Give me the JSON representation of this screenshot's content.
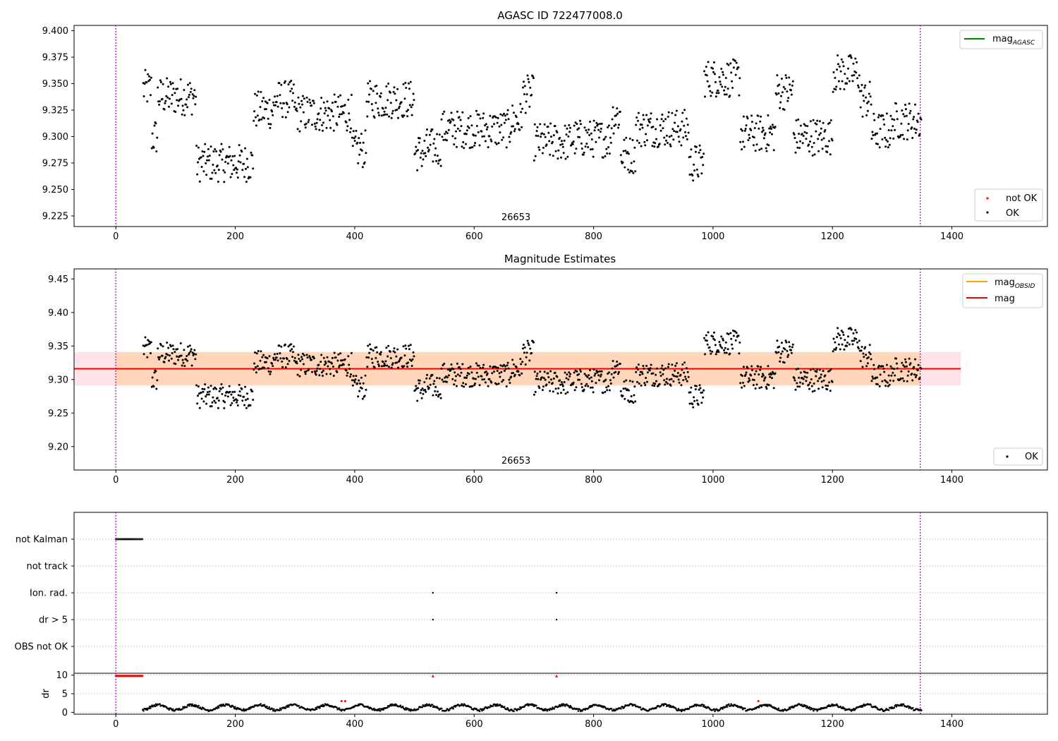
{
  "chart_data": [
    {
      "type": "scatter",
      "title": "AGASC ID 722477008.0",
      "xlim": [
        -70,
        1560
      ],
      "ylim": [
        9.215,
        9.405
      ],
      "xticks": [
        "0",
        "200",
        "400",
        "600",
        "800",
        "1000",
        "1200",
        "1400"
      ],
      "yticks": [
        "9.225",
        "9.250",
        "9.275",
        "9.300",
        "9.325",
        "9.350",
        "9.375",
        "9.400"
      ],
      "obsid_label": "26653",
      "obsid_label_x": 670,
      "vlines_x": [
        0,
        1347
      ],
      "legend_top": [
        {
          "label": "mag",
          "sub": "AGASC",
          "color": "#008000"
        }
      ],
      "legend_bottom": [
        {
          "label": "not OK",
          "color": "#ff0000"
        },
        {
          "label": "OK",
          "color": "#000000"
        }
      ],
      "series": [
        {
          "name": "OK",
          "x_range": [
            45,
            1350
          ],
          "color": "#000000"
        }
      ]
    },
    {
      "type": "scatter",
      "title": "Magnitude Estimates",
      "xlim": [
        -70,
        1560
      ],
      "ylim": [
        9.165,
        9.465
      ],
      "xticks": [
        "0",
        "200",
        "400",
        "600",
        "800",
        "1000",
        "1200",
        "1400"
      ],
      "yticks": [
        "9.20",
        "9.25",
        "9.30",
        "9.35",
        "9.40",
        "9.45"
      ],
      "obsid_label": "26653",
      "obsid_label_x": 670,
      "vlines_x": [
        0,
        1347
      ],
      "mag_line": 9.316,
      "mag_band": [
        9.291,
        9.341
      ],
      "band_x_range": [
        -70,
        1415
      ],
      "obsid_band_x_range": [
        0,
        1347
      ],
      "legend_top": [
        {
          "label": "mag",
          "sub": "OBSID",
          "color": "#ffa500"
        },
        {
          "label": "mag",
          "sub": "",
          "color": "#ff0000"
        }
      ],
      "legend_bottom": [
        {
          "label": "OK",
          "color": "#000000"
        }
      ]
    },
    {
      "type": "scatter",
      "title": "",
      "xlim": [
        -70,
        1560
      ],
      "xticks": [
        "0",
        "200",
        "400",
        "600",
        "800",
        "1000",
        "1200",
        "1400"
      ],
      "flag_rows": [
        "not Kalman",
        "not track",
        "Ion. rad.",
        "dr > 5",
        "OBS not OK"
      ],
      "flag_points": [
        {
          "row": "not Kalman",
          "x_range": [
            0,
            45
          ]
        },
        {
          "row": "Ion. rad.",
          "x": [
            531,
            738
          ]
        },
        {
          "row": "dr > 5",
          "x": [
            531,
            738
          ]
        }
      ],
      "vlines_x": [
        0,
        1347
      ]
    },
    {
      "type": "scatter",
      "title": "",
      "xlim": [
        -70,
        1560
      ],
      "ylim": [
        -0.5,
        10.5
      ],
      "ylabel": "dr",
      "xticks": [
        "0",
        "200",
        "400",
        "600",
        "800",
        "1000",
        "1200",
        "1400"
      ],
      "yticks": [
        "0",
        "5",
        "10"
      ],
      "clipped_red_x": [
        [
          0,
          45
        ],
        [
          531
        ],
        [
          738
        ]
      ],
      "dr_x_range": [
        45,
        1350
      ],
      "vlines_x": [
        0,
        1347
      ]
    }
  ]
}
